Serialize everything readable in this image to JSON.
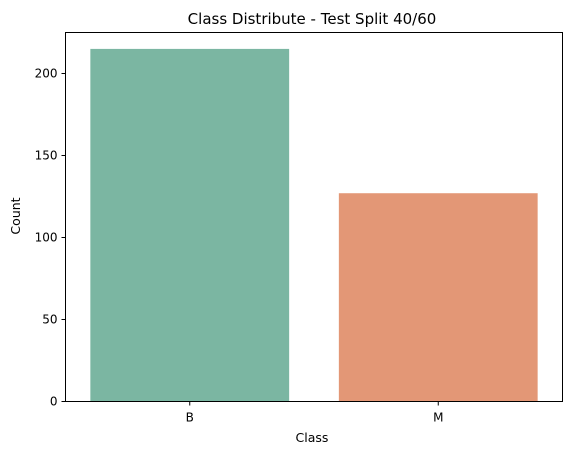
{
  "chart_data": {
    "type": "bar",
    "title": "Class Distribute - Test Split 40/60",
    "xlabel": "Class",
    "ylabel": "Count",
    "categories": [
      "B",
      "M"
    ],
    "values": [
      215,
      127
    ],
    "ylim": [
      0,
      225
    ],
    "yticks": [
      0,
      50,
      100,
      150,
      200
    ],
    "colors": [
      "#7bb6a2",
      "#e39776"
    ],
    "grid": false,
    "legend": "none"
  }
}
